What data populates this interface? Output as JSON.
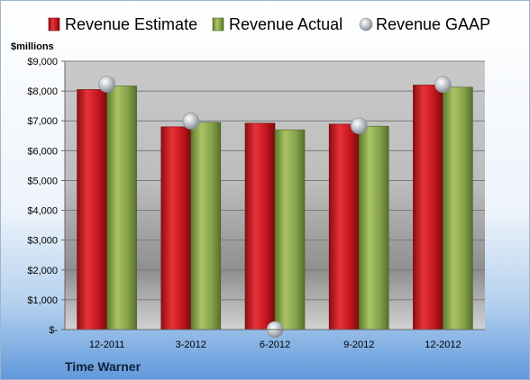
{
  "chart_data": {
    "type": "bar",
    "company": "Time Warner",
    "unit_label": "$millions",
    "categories": [
      "12-2011",
      "3-2012",
      "6-2012",
      "9-2012",
      "12-2012"
    ],
    "series": [
      {
        "name": "Revenue Estimate",
        "kind": "bar",
        "color": "#d11f26",
        "values": [
          8050,
          6800,
          6920,
          6890,
          8200
        ]
      },
      {
        "name": "Revenue Actual",
        "kind": "bar",
        "color": "#8aa64a",
        "values": [
          8170,
          6950,
          6700,
          6820,
          8130
        ]
      },
      {
        "name": "Revenue GAAP",
        "kind": "marker",
        "color": "#b8bcc4",
        "values": [
          8230,
          6990,
          0,
          6830,
          8220
        ]
      }
    ],
    "y_ticks": [
      "$-",
      "$1,000",
      "$2,000",
      "$3,000",
      "$4,000",
      "$5,000",
      "$6,000",
      "$7,000",
      "$8,000",
      "$9,000"
    ],
    "ylim": [
      0,
      9000
    ],
    "grid": true,
    "legend_position": "top"
  }
}
